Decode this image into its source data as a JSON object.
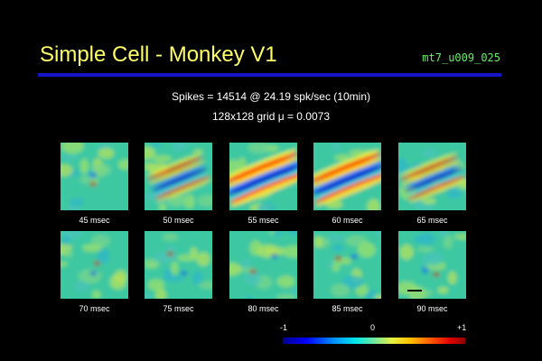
{
  "header": {
    "title": "Simple Cell - Monkey V1",
    "file_id": "mt7_u009_025"
  },
  "stats": {
    "spikes_line": "Spikes = 14514 @ 24.19 spk/sec (10min)",
    "grid_line": "128x128 grid   μ = 0.0073"
  },
  "frames": [
    {
      "label": "45 msec",
      "strength": 0.12
    },
    {
      "label": "50 msec",
      "strength": 0.55
    },
    {
      "label": "55 msec",
      "strength": 1.0
    },
    {
      "label": "60 msec",
      "strength": 0.95
    },
    {
      "label": "65 msec",
      "strength": 0.6
    },
    {
      "label": "70 msec",
      "strength": 0.1
    },
    {
      "label": "75 msec",
      "strength": 0.08
    },
    {
      "label": "80 msec",
      "strength": 0.08
    },
    {
      "label": "85 msec",
      "strength": 0.06
    },
    {
      "label": "90 msec",
      "strength": 0.05
    }
  ],
  "colorbar": {
    "min_label": "-1",
    "mid_label": "0",
    "max_label": "+1"
  }
}
